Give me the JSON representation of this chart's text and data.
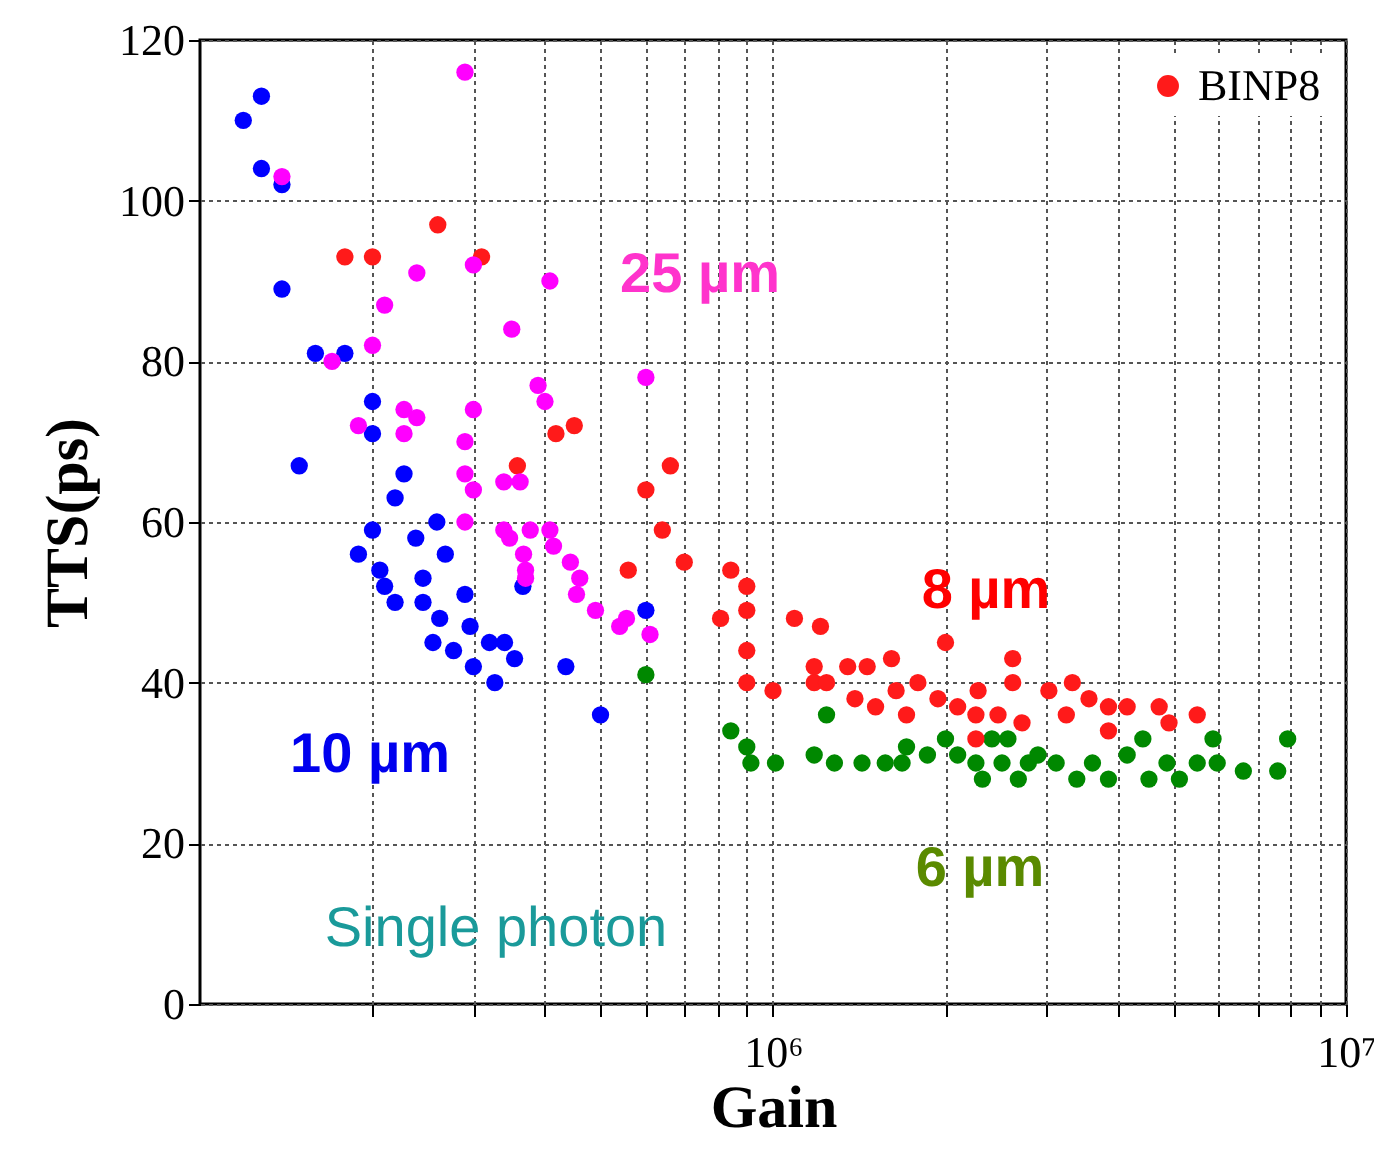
{
  "chart_data": {
    "type": "scatter",
    "xlabel": "Gain",
    "ylabel": "TTS(ps)",
    "log": "x",
    "grid": true,
    "legend": "top right",
    "marker": "circle",
    "xlim": [
      100000,
      10000000
    ],
    "ylim": [
      0,
      120
    ],
    "xticks": [
      {
        "value": 200000,
        "label": null
      },
      {
        "value": 300000,
        "label": null
      },
      {
        "value": 400000,
        "label": null
      },
      {
        "value": 500000,
        "label": null
      },
      {
        "value": 600000,
        "label": null
      },
      {
        "value": 700000,
        "label": null
      },
      {
        "value": 800000,
        "label": null
      },
      {
        "value": 900000,
        "label": null
      },
      {
        "value": 1000000,
        "label": "10⁶"
      },
      {
        "value": 2000000,
        "label": null
      },
      {
        "value": 3000000,
        "label": null
      },
      {
        "value": 4000000,
        "label": null
      },
      {
        "value": 5000000,
        "label": null
      },
      {
        "value": 6000000,
        "label": null
      },
      {
        "value": 7000000,
        "label": null
      },
      {
        "value": 8000000,
        "label": null
      },
      {
        "value": 9000000,
        "label": null
      },
      {
        "value": 10000000,
        "label": "10⁷"
      }
    ],
    "yticks": [
      0,
      20,
      40,
      60,
      80,
      100,
      120
    ],
    "annotations": [
      "25 µm",
      "8 µm",
      "10 µm",
      "6 µm",
      "Single photon"
    ],
    "series": [
      {
        "color": "#008800",
        "x": [
          600000,
          844000,
          900000,
          915000,
          1010000,
          1180000,
          1240000,
          1280000,
          1430000,
          1570000,
          1710000,
          1680000,
          1860000,
          2000000,
          2100000,
          2260000,
          2320000,
          2410000,
          2570000,
          2510000,
          2680000,
          2790000,
          2900000,
          3120000,
          3390000,
          3610000,
          3850000,
          4150000,
          4420000,
          4530000,
          4870000,
          5120000,
          5500000,
          5860000,
          5960000,
          6620000,
          7600000,
          7910000
        ],
        "values": [
          41,
          34,
          32,
          30,
          30,
          31,
          36,
          30,
          30,
          30,
          32,
          30,
          31,
          33,
          31,
          30,
          28,
          33,
          33,
          30,
          28,
          30,
          31,
          30,
          28,
          30,
          28,
          31,
          33,
          28,
          30,
          28,
          30,
          33,
          30,
          29,
          29,
          33
        ]
      },
      {
        "name": "BINP8",
        "color": "#ff1a1a",
        "x": [
          260000,
          179000,
          200000,
          310000,
          418000,
          450000,
          358000,
          662000,
          600000,
          641000,
          700000,
          559000,
          844000,
          900000,
          810000,
          900000,
          900000,
          900000,
          1000000,
          1090000,
          1180000,
          1180000,
          1210000,
          1240000,
          1350000,
          1460000,
          1610000,
          1390000,
          1510000,
          1640000,
          1790000,
          1710000,
          1940000,
          2000000,
          2100000,
          2280000,
          2260000,
          2620000,
          2620000,
          2470000,
          2720000,
          3030000,
          3330000,
          3250000,
          3560000,
          3850000,
          4150000,
          3850000,
          4720000,
          4910000,
          5500000,
          2260000
        ],
        "values": [
          97,
          93,
          93,
          93,
          71,
          72,
          67,
          67,
          64,
          59,
          55,
          54,
          54,
          52,
          48,
          49,
          44,
          40,
          39,
          48,
          42,
          40,
          47,
          40,
          42,
          42,
          43,
          38,
          37,
          39,
          40,
          36,
          38,
          45,
          37,
          39,
          36,
          43,
          40,
          36,
          35,
          39,
          40,
          36,
          38,
          37,
          37,
          34,
          37,
          35,
          36,
          33
        ]
      },
      {
        "color": "#0000ff",
        "x": [
          128000,
          119000,
          128000,
          139000,
          139000,
          159000,
          179000,
          200000,
          200000,
          149000,
          227000,
          219000,
          259000,
          238000,
          200000,
          189000,
          268000,
          206000,
          210000,
          219000,
          245000,
          245000,
          262000,
          255000,
          277000,
          296000,
          290000,
          300000,
          320000,
          340000,
          354000,
          327000,
          435000,
          500000,
          600000,
          366000
        ],
        "values": [
          113,
          110,
          104,
          102,
          89,
          81,
          81,
          75,
          71,
          67,
          66,
          63,
          60,
          58,
          59,
          56,
          56,
          54,
          52,
          50,
          53,
          50,
          48,
          45,
          44,
          47,
          51,
          42,
          45,
          45,
          43,
          40,
          42,
          36,
          49,
          52
        ]
      },
      {
        "color": "#ff00ff",
        "x": [
          290000,
          139000,
          300000,
          239000,
          408000,
          210000,
          350000,
          200000,
          170000,
          600000,
          389000,
          400000,
          300000,
          227000,
          239000,
          189000,
          227000,
          290000,
          290000,
          300000,
          339000,
          362000,
          290000,
          339000,
          377000,
          408000,
          367000,
          414000,
          443000,
          347000,
          370000,
          370000,
          460000,
          454000,
          490000,
          540000,
          555000,
          610000
        ],
        "values": [
          116,
          103,
          92,
          91,
          90,
          87,
          84,
          82,
          80,
          78,
          77,
          75,
          74,
          74,
          73,
          72,
          71,
          70,
          66,
          64,
          65,
          65,
          60,
          59,
          59,
          59,
          56,
          57,
          55,
          58,
          54,
          53,
          53,
          51,
          49,
          47,
          48,
          46
        ]
      }
    ]
  }
}
